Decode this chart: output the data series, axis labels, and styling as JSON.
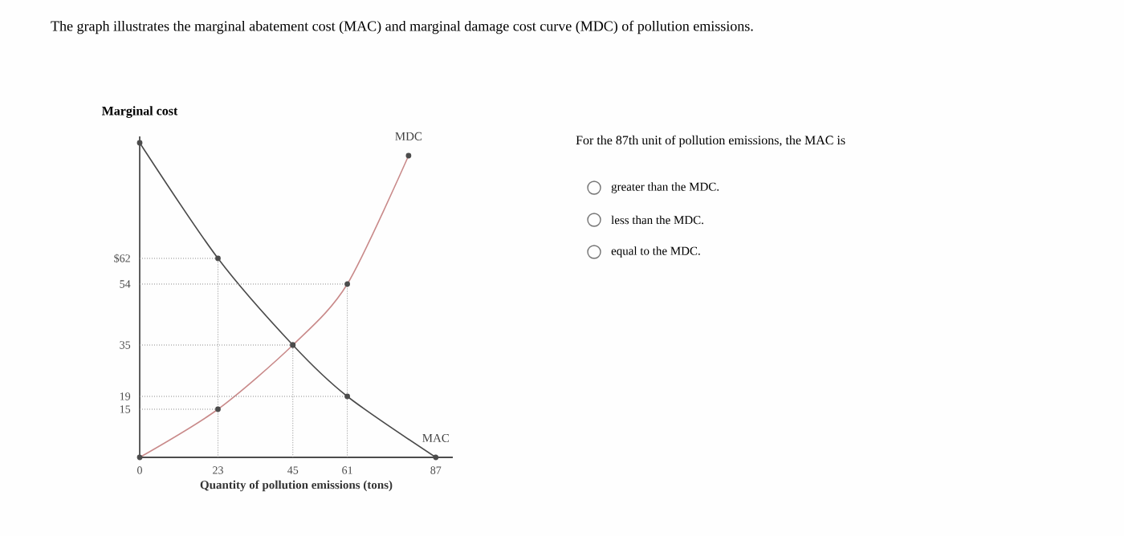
{
  "chart_data": {
    "type": "line",
    "title": "The graph illustrates the marginal abatement cost (MAC) and marginal damage cost curve (MDC) of pollution emissions.",
    "xlabel": "Quantity of pollution emissions (tons)",
    "ylabel": "Marginal cost",
    "xlim": [
      0,
      92
    ],
    "ylim": [
      0,
      100
    ],
    "xticks": [
      0,
      23,
      45,
      61,
      87
    ],
    "yticks": [
      {
        "value": 62,
        "label": "$62"
      },
      54,
      35,
      19,
      15
    ],
    "series": [
      {
        "name": "MAC",
        "color": "#4a4a4a",
        "x": [
          0,
          23,
          45,
          61,
          87
        ],
        "values": [
          98,
          62,
          35,
          19,
          0
        ],
        "marker": "circle",
        "line_style": "solid"
      },
      {
        "name": "MDC",
        "color": "#c98a8a",
        "x": [
          0,
          23,
          45,
          61,
          79
        ],
        "values": [
          0,
          15,
          35,
          54,
          94
        ],
        "marker": "circle",
        "line_style": "solid"
      },
      {
        "color": "#8a8a8a",
        "x": [
          0,
          23,
          23
        ],
        "values": [
          62,
          62,
          0
        ],
        "marker": "none",
        "line_style": "dotted"
      },
      {
        "color": "#8a8a8a",
        "x": [
          0,
          23
        ],
        "values": [
          15,
          15
        ],
        "marker": "none",
        "line_style": "dotted"
      },
      {
        "color": "#8a8a8a",
        "x": [
          0,
          45,
          45
        ],
        "values": [
          35,
          35,
          0
        ],
        "marker": "none",
        "line_style": "dotted"
      },
      {
        "color": "#8a8a8a",
        "x": [
          0,
          61,
          61
        ],
        "values": [
          54,
          54,
          0
        ],
        "marker": "none",
        "line_style": "dotted"
      },
      {
        "color": "#8a8a8a",
        "x": [
          0,
          61
        ],
        "values": [
          19,
          19
        ],
        "marker": "none",
        "line_style": "dotted"
      }
    ],
    "annotations": [
      "For the 87th unit of pollution emissions, the MAC is",
      "greater than the MDC.",
      "less than the MDC.",
      "equal to the MDC."
    ]
  }
}
